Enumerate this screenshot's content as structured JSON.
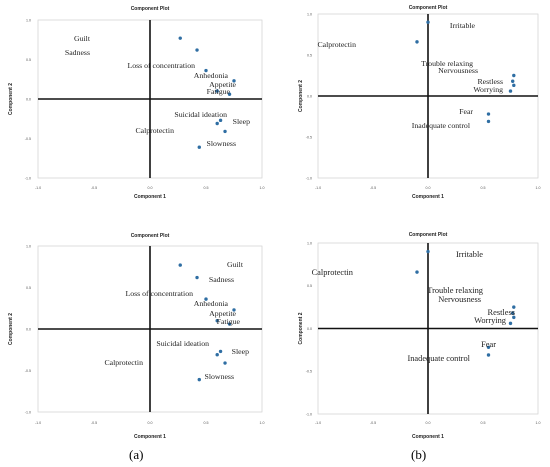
{
  "captions": {
    "a": "(a)",
    "b": "(b)"
  },
  "chart_data": [
    {
      "type": "scatter",
      "title": "Component Plot",
      "xlabel": "Component 1",
      "ylabel": "Component 2",
      "xlim": [
        -1.0,
        1.0
      ],
      "ylim": [
        -1.0,
        1.0
      ],
      "x_ticks": [
        "-1.0",
        "-0.5",
        "0.0",
        "0.5",
        "1.0"
      ],
      "y_ticks": [
        "1.0",
        "0.5",
        "0.0",
        "-0.5",
        "-1.0"
      ],
      "marker_color": "#2f6ea3",
      "points": [
        {
          "label": "Guilt",
          "x": 0.27,
          "y": 0.77
        },
        {
          "label": "Sadness",
          "x": 0.42,
          "y": 0.62
        },
        {
          "label": "Loss of concentration",
          "x": 0.5,
          "y": 0.36
        },
        {
          "label": "Anhedonia",
          "x": 0.75,
          "y": 0.23
        },
        {
          "label": "Appetite",
          "x": 0.6,
          "y": 0.1
        },
        {
          "label": "Fatigue",
          "x": 0.71,
          "y": 0.06
        },
        {
          "label": "Suicidal ideation",
          "x": 0.63,
          "y": -0.27
        },
        {
          "label": "Sleep",
          "x": 0.6,
          "y": -0.31
        },
        {
          "label": "Calprotectin",
          "x": 0.67,
          "y": -0.41
        },
        {
          "label": "Slowness",
          "x": 0.44,
          "y": -0.61
        }
      ]
    },
    {
      "type": "scatter",
      "title": "Component Plot",
      "xlabel": "Component 1",
      "ylabel": "Component 2",
      "xlim": [
        -1.0,
        1.0
      ],
      "ylim": [
        -1.0,
        1.0
      ],
      "x_ticks": [
        "-1.0",
        "-0.5",
        "0.0",
        "0.5",
        "1.0"
      ],
      "y_ticks": [
        "1.0",
        "0.5",
        "0.0",
        "-0.5",
        "-1.0"
      ],
      "marker_color": "#2f6ea3",
      "points": [
        {
          "label": "Irritable",
          "x": 0.0,
          "y": 0.9
        },
        {
          "label": "Calprotectin",
          "x": -0.1,
          "y": 0.66
        },
        {
          "label": "Trouble relaxing",
          "x": 0.78,
          "y": 0.25
        },
        {
          "label": "Nervousness",
          "x": 0.77,
          "y": 0.18
        },
        {
          "label": "Restless",
          "x": 0.78,
          "y": 0.13
        },
        {
          "label": "Worrying",
          "x": 0.75,
          "y": 0.06
        },
        {
          "label": "Fear",
          "x": 0.55,
          "y": -0.22
        },
        {
          "label": "Inadequate control",
          "x": 0.55,
          "y": -0.31
        }
      ]
    }
  ]
}
